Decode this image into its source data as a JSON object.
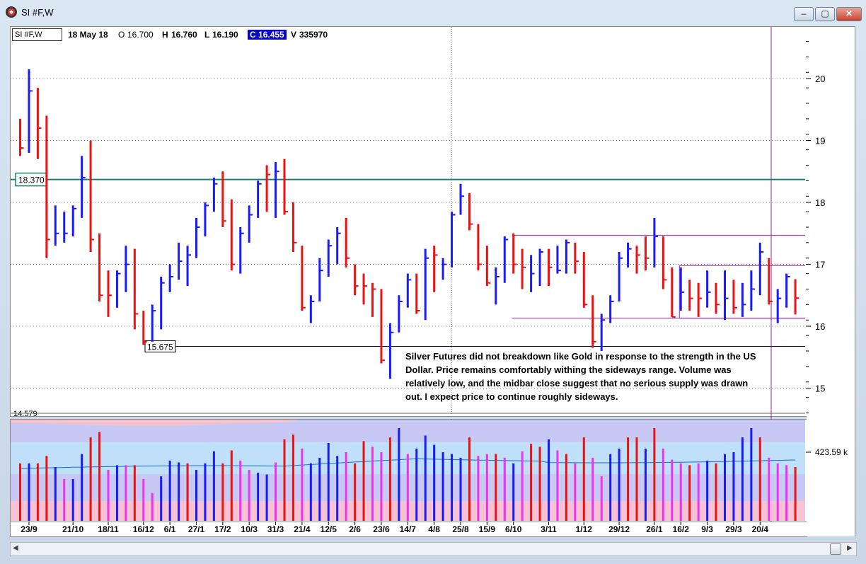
{
  "window": {
    "title": "SI #F,W"
  },
  "controls": {
    "minimize": "–",
    "maximize": "▢",
    "close": "✕"
  },
  "header": {
    "symbol": "SI #F,W",
    "date": "18 May 18",
    "open_label": "O",
    "open": "16.700",
    "high_label": "H",
    "high": "16.760",
    "low_label": "L",
    "low": "16.190",
    "close_label": "C",
    "close": "16.455",
    "volume_label": "V",
    "volume": "335970"
  },
  "annotation": "Silver Futures did not breakdown like Gold in response to the strength in the US Dollar.   Price remains comfortably withing the sideways range. Volume was relatively low, and the midbar close suggest that no serious supply was drawn out.   I expect price to continue roughly sideways.",
  "colors": {
    "up": "#1a1aff",
    "down": "#ee1111",
    "pink": "#ee33ee",
    "teal": "#1a8070",
    "purple": "#a020a0"
  },
  "chart_data": {
    "type": "bar",
    "title": "",
    "price_axis": {
      "ylim": [
        14.579,
        20.85
      ],
      "ticks": [
        15,
        16,
        17,
        18,
        19,
        20
      ],
      "bottom_label": "14.579"
    },
    "x_ticks": [
      {
        "i": 1,
        "label": "23/9"
      },
      {
        "i": 6,
        "label": "21/10"
      },
      {
        "i": 10,
        "label": "18/11"
      },
      {
        "i": 14,
        "label": "16/12"
      },
      {
        "i": 17,
        "label": "6/1"
      },
      {
        "i": 20,
        "label": "27/1"
      },
      {
        "i": 23,
        "label": "17/2"
      },
      {
        "i": 26,
        "label": "10/3"
      },
      {
        "i": 29,
        "label": "31/3"
      },
      {
        "i": 32,
        "label": "21/4"
      },
      {
        "i": 35,
        "label": "12/5"
      },
      {
        "i": 38,
        "label": "2/6"
      },
      {
        "i": 41,
        "label": "23/6"
      },
      {
        "i": 44,
        "label": "14/7"
      },
      {
        "i": 47,
        "label": "4/8"
      },
      {
        "i": 50,
        "label": "25/8"
      },
      {
        "i": 53,
        "label": "15/9"
      },
      {
        "i": 56,
        "label": "6/10"
      },
      {
        "i": 60,
        "label": "3/11"
      },
      {
        "i": 64,
        "label": "1/12"
      },
      {
        "i": 68,
        "label": "29/12"
      },
      {
        "i": 72,
        "label": "26/1"
      },
      {
        "i": 75,
        "label": "16/2"
      },
      {
        "i": 78,
        "label": "9/3"
      },
      {
        "i": 81,
        "label": "29/3"
      },
      {
        "i": 84,
        "label": "20/4"
      }
    ],
    "levels": [
      {
        "name": "resistance",
        "value": 18.37,
        "label": "18.370",
        "color": "#1a8070"
      },
      {
        "name": "support",
        "value": 15.675,
        "label": "15.675",
        "color": "#00008b"
      }
    ],
    "ranges": [
      {
        "from": 56,
        "to": 89,
        "high": 17.47,
        "low": 16.13,
        "color": "#a020a0"
      },
      {
        "from": 75,
        "to": 89,
        "high": 16.98,
        "low": 16.13,
        "color": "#a020a0"
      }
    ],
    "volume_label": "423.59 k",
    "bars": [
      {
        "h": 19.35,
        "l": 18.75,
        "c": 18.88,
        "d": "down"
      },
      {
        "h": 20.15,
        "l": 18.8,
        "c": 19.8,
        "d": "up"
      },
      {
        "h": 19.85,
        "l": 18.7,
        "c": 19.2,
        "d": "down"
      },
      {
        "h": 19.4,
        "l": 17.1,
        "c": 17.4,
        "d": "down"
      },
      {
        "h": 17.95,
        "l": 17.3,
        "c": 17.5,
        "d": "up"
      },
      {
        "h": 17.85,
        "l": 17.35,
        "c": 17.5,
        "d": "up"
      },
      {
        "h": 17.95,
        "l": 17.45,
        "c": 17.9,
        "d": "up"
      },
      {
        "h": 18.75,
        "l": 17.75,
        "c": 18.4,
        "d": "up"
      },
      {
        "h": 19.0,
        "l": 17.2,
        "c": 17.4,
        "d": "down"
      },
      {
        "h": 17.5,
        "l": 16.4,
        "c": 16.5,
        "d": "down"
      },
      {
        "h": 16.9,
        "l": 16.15,
        "c": 16.5,
        "d": "down"
      },
      {
        "h": 16.9,
        "l": 16.3,
        "c": 16.85,
        "d": "up"
      },
      {
        "h": 17.3,
        "l": 16.55,
        "c": 17.0,
        "d": "up"
      },
      {
        "h": 17.25,
        "l": 15.95,
        "c": 16.2,
        "d": "down"
      },
      {
        "h": 16.25,
        "l": 15.7,
        "c": 15.75,
        "d": "down"
      },
      {
        "h": 16.35,
        "l": 15.75,
        "c": 16.25,
        "d": "up"
      },
      {
        "h": 16.8,
        "l": 15.95,
        "c": 16.7,
        "d": "up"
      },
      {
        "h": 17.0,
        "l": 16.55,
        "c": 16.8,
        "d": "up"
      },
      {
        "h": 17.35,
        "l": 16.75,
        "c": 17.05,
        "d": "up"
      },
      {
        "h": 17.3,
        "l": 16.65,
        "c": 17.15,
        "d": "up"
      },
      {
        "h": 17.75,
        "l": 17.1,
        "c": 17.6,
        "d": "up"
      },
      {
        "h": 18.0,
        "l": 17.45,
        "c": 17.95,
        "d": "up"
      },
      {
        "h": 18.4,
        "l": 17.85,
        "c": 18.3,
        "d": "up"
      },
      {
        "h": 18.5,
        "l": 17.6,
        "c": 17.7,
        "d": "down"
      },
      {
        "h": 18.05,
        "l": 16.9,
        "c": 17.0,
        "d": "down"
      },
      {
        "h": 17.6,
        "l": 16.85,
        "c": 17.5,
        "d": "up"
      },
      {
        "h": 17.95,
        "l": 17.35,
        "c": 17.8,
        "d": "up"
      },
      {
        "h": 18.35,
        "l": 17.75,
        "c": 18.3,
        "d": "up"
      },
      {
        "h": 18.6,
        "l": 17.85,
        "c": 18.45,
        "d": "down"
      },
      {
        "h": 18.65,
        "l": 17.75,
        "c": 18.5,
        "d": "up"
      },
      {
        "h": 18.7,
        "l": 17.8,
        "c": 17.85,
        "d": "down"
      },
      {
        "h": 18.0,
        "l": 17.2,
        "c": 17.35,
        "d": "down"
      },
      {
        "h": 17.3,
        "l": 16.25,
        "c": 16.3,
        "d": "down"
      },
      {
        "h": 16.5,
        "l": 16.05,
        "c": 16.4,
        "d": "up"
      },
      {
        "h": 17.1,
        "l": 16.4,
        "c": 16.9,
        "d": "up"
      },
      {
        "h": 17.4,
        "l": 16.8,
        "c": 17.3,
        "d": "up"
      },
      {
        "h": 17.6,
        "l": 17.0,
        "c": 17.5,
        "d": "up"
      },
      {
        "h": 17.75,
        "l": 16.95,
        "c": 17.1,
        "d": "down"
      },
      {
        "h": 17.0,
        "l": 16.5,
        "c": 16.65,
        "d": "down"
      },
      {
        "h": 16.85,
        "l": 16.35,
        "c": 16.65,
        "d": "down"
      },
      {
        "h": 16.7,
        "l": 16.15,
        "c": 16.6,
        "d": "down"
      },
      {
        "h": 16.6,
        "l": 15.4,
        "c": 15.45,
        "d": "down"
      },
      {
        "h": 16.05,
        "l": 15.15,
        "c": 15.9,
        "d": "up"
      },
      {
        "h": 16.5,
        "l": 15.9,
        "c": 16.4,
        "d": "up"
      },
      {
        "h": 16.85,
        "l": 16.3,
        "c": 16.75,
        "d": "up"
      },
      {
        "h": 16.85,
        "l": 16.2,
        "c": 16.25,
        "d": "down"
      },
      {
        "h": 17.25,
        "l": 16.1,
        "c": 17.1,
        "d": "up"
      },
      {
        "h": 17.3,
        "l": 16.55,
        "c": 17.15,
        "d": "down"
      },
      {
        "h": 17.1,
        "l": 16.75,
        "c": 17.0,
        "d": "up"
      },
      {
        "h": 17.85,
        "l": 16.95,
        "c": 17.8,
        "d": "up"
      },
      {
        "h": 18.3,
        "l": 17.8,
        "c": 18.1,
        "d": "up"
      },
      {
        "h": 18.15,
        "l": 17.55,
        "c": 17.65,
        "d": "down"
      },
      {
        "h": 17.65,
        "l": 16.9,
        "c": 17.0,
        "d": "down"
      },
      {
        "h": 17.3,
        "l": 16.65,
        "c": 16.7,
        "d": "down"
      },
      {
        "h": 16.95,
        "l": 16.35,
        "c": 16.8,
        "d": "up"
      },
      {
        "h": 17.45,
        "l": 16.7,
        "c": 17.4,
        "d": "up"
      },
      {
        "h": 17.5,
        "l": 16.85,
        "c": 17.0,
        "d": "down"
      },
      {
        "h": 17.25,
        "l": 16.6,
        "c": 16.95,
        "d": "down"
      },
      {
        "h": 17.15,
        "l": 16.55,
        "c": 16.85,
        "d": "up"
      },
      {
        "h": 17.25,
        "l": 16.65,
        "c": 17.2,
        "d": "up"
      },
      {
        "h": 17.25,
        "l": 16.65,
        "c": 16.95,
        "d": "down"
      },
      {
        "h": 17.3,
        "l": 16.85,
        "c": 16.9,
        "d": "up"
      },
      {
        "h": 17.4,
        "l": 16.85,
        "c": 17.35,
        "d": "up"
      },
      {
        "h": 17.35,
        "l": 16.85,
        "c": 17.05,
        "d": "down"
      },
      {
        "h": 17.2,
        "l": 16.3,
        "c": 16.35,
        "d": "down"
      },
      {
        "h": 16.5,
        "l": 15.65,
        "c": 15.75,
        "d": "down"
      },
      {
        "h": 16.2,
        "l": 15.6,
        "c": 16.1,
        "d": "up"
      },
      {
        "h": 16.5,
        "l": 16.05,
        "c": 16.4,
        "d": "up"
      },
      {
        "h": 17.2,
        "l": 16.4,
        "c": 17.1,
        "d": "up"
      },
      {
        "h": 17.35,
        "l": 16.95,
        "c": 17.25,
        "d": "up"
      },
      {
        "h": 17.3,
        "l": 16.85,
        "c": 17.15,
        "d": "down"
      },
      {
        "h": 17.45,
        "l": 16.9,
        "c": 17.1,
        "d": "down"
      },
      {
        "h": 17.75,
        "l": 16.95,
        "c": 17.45,
        "d": "up"
      },
      {
        "h": 17.45,
        "l": 16.6,
        "c": 16.75,
        "d": "down"
      },
      {
        "h": 16.95,
        "l": 16.15,
        "c": 16.15,
        "d": "down"
      },
      {
        "h": 16.95,
        "l": 16.25,
        "c": 16.55,
        "d": "up"
      },
      {
        "h": 16.75,
        "l": 16.25,
        "c": 16.45,
        "d": "down"
      },
      {
        "h": 16.7,
        "l": 16.15,
        "c": 16.45,
        "d": "down"
      },
      {
        "h": 16.9,
        "l": 16.3,
        "c": 16.55,
        "d": "up"
      },
      {
        "h": 16.7,
        "l": 16.2,
        "c": 16.35,
        "d": "down"
      },
      {
        "h": 16.9,
        "l": 16.1,
        "c": 16.45,
        "d": "up"
      },
      {
        "h": 16.75,
        "l": 16.2,
        "c": 16.3,
        "d": "down"
      },
      {
        "h": 16.7,
        "l": 16.15,
        "c": 16.35,
        "d": "up"
      },
      {
        "h": 16.9,
        "l": 16.25,
        "c": 16.6,
        "d": "up"
      },
      {
        "h": 17.35,
        "l": 16.5,
        "c": 17.2,
        "d": "up"
      },
      {
        "h": 17.1,
        "l": 16.35,
        "c": 16.4,
        "d": "down"
      },
      {
        "h": 16.6,
        "l": 16.05,
        "c": 16.45,
        "d": "up"
      },
      {
        "h": 16.85,
        "l": 16.3,
        "c": 16.8,
        "d": "up"
      },
      {
        "h": 16.76,
        "l": 16.19,
        "c": 16.455,
        "d": "down"
      }
    ],
    "volume": [
      {
        "v": 0.62,
        "c": "red"
      },
      {
        "v": 0.62,
        "c": "blue"
      },
      {
        "v": 0.62,
        "c": "red"
      },
      {
        "v": 0.7,
        "c": "red"
      },
      {
        "v": 0.58,
        "c": "blue"
      },
      {
        "v": 0.45,
        "c": "pink"
      },
      {
        "v": 0.45,
        "c": "blue"
      },
      {
        "v": 0.72,
        "c": "blue"
      },
      {
        "v": 0.9,
        "c": "red"
      },
      {
        "v": 0.96,
        "c": "red"
      },
      {
        "v": 0.55,
        "c": "pink"
      },
      {
        "v": 0.6,
        "c": "blue"
      },
      {
        "v": 0.6,
        "c": "pink"
      },
      {
        "v": 0.6,
        "c": "red"
      },
      {
        "v": 0.45,
        "c": "pink"
      },
      {
        "v": 0.3,
        "c": "pink"
      },
      {
        "v": 0.48,
        "c": "blue"
      },
      {
        "v": 0.65,
        "c": "blue"
      },
      {
        "v": 0.63,
        "c": "blue"
      },
      {
        "v": 0.62,
        "c": "red"
      },
      {
        "v": 0.55,
        "c": "blue"
      },
      {
        "v": 0.62,
        "c": "blue"
      },
      {
        "v": 0.75,
        "c": "blue"
      },
      {
        "v": 0.62,
        "c": "red"
      },
      {
        "v": 0.76,
        "c": "red"
      },
      {
        "v": 0.65,
        "c": "pink"
      },
      {
        "v": 0.55,
        "c": "pink"
      },
      {
        "v": 0.52,
        "c": "blue"
      },
      {
        "v": 0.5,
        "c": "blue"
      },
      {
        "v": 0.63,
        "c": "pink"
      },
      {
        "v": 0.88,
        "c": "red"
      },
      {
        "v": 0.93,
        "c": "red"
      },
      {
        "v": 0.78,
        "c": "pink"
      },
      {
        "v": 0.62,
        "c": "blue"
      },
      {
        "v": 0.68,
        "c": "blue"
      },
      {
        "v": 0.84,
        "c": "blue"
      },
      {
        "v": 0.7,
        "c": "blue"
      },
      {
        "v": 0.74,
        "c": "pink"
      },
      {
        "v": 0.62,
        "c": "red"
      },
      {
        "v": 0.86,
        "c": "red"
      },
      {
        "v": 0.8,
        "c": "pink"
      },
      {
        "v": 0.74,
        "c": "pink"
      },
      {
        "v": 0.9,
        "c": "red"
      },
      {
        "v": 1.0,
        "c": "blue"
      },
      {
        "v": 0.72,
        "c": "pink"
      },
      {
        "v": 0.78,
        "c": "blue"
      },
      {
        "v": 0.92,
        "c": "blue"
      },
      {
        "v": 0.82,
        "c": "blue"
      },
      {
        "v": 0.74,
        "c": "blue"
      },
      {
        "v": 0.72,
        "c": "blue"
      },
      {
        "v": 0.68,
        "c": "blue"
      },
      {
        "v": 0.9,
        "c": "red"
      },
      {
        "v": 0.7,
        "c": "pink"
      },
      {
        "v": 0.72,
        "c": "pink"
      },
      {
        "v": 0.72,
        "c": "red"
      },
      {
        "v": 0.68,
        "c": "pink"
      },
      {
        "v": 0.62,
        "c": "blue"
      },
      {
        "v": 0.75,
        "c": "pink"
      },
      {
        "v": 0.83,
        "c": "red"
      },
      {
        "v": 0.8,
        "c": "red"
      },
      {
        "v": 0.88,
        "c": "blue"
      },
      {
        "v": 0.76,
        "c": "pink"
      },
      {
        "v": 0.72,
        "c": "red"
      },
      {
        "v": 0.62,
        "c": "pink"
      },
      {
        "v": 0.9,
        "c": "red"
      },
      {
        "v": 0.68,
        "c": "pink"
      },
      {
        "v": 0.48,
        "c": "pink"
      },
      {
        "v": 0.72,
        "c": "blue"
      },
      {
        "v": 0.78,
        "c": "blue"
      },
      {
        "v": 0.9,
        "c": "red"
      },
      {
        "v": 0.9,
        "c": "red"
      },
      {
        "v": 0.78,
        "c": "blue"
      },
      {
        "v": 1.0,
        "c": "red"
      },
      {
        "v": 0.78,
        "c": "pink"
      },
      {
        "v": 0.66,
        "c": "pink"
      },
      {
        "v": 0.62,
        "c": "pink"
      },
      {
        "v": 0.6,
        "c": "red"
      },
      {
        "v": 0.62,
        "c": "pink"
      },
      {
        "v": 0.65,
        "c": "blue"
      },
      {
        "v": 0.62,
        "c": "red"
      },
      {
        "v": 0.72,
        "c": "blue"
      },
      {
        "v": 0.74,
        "c": "blue"
      },
      {
        "v": 0.9,
        "c": "blue"
      },
      {
        "v": 1.0,
        "c": "blue"
      },
      {
        "v": 0.9,
        "c": "red"
      },
      {
        "v": 0.68,
        "c": "pink"
      },
      {
        "v": 0.62,
        "c": "pink"
      },
      {
        "v": 0.6,
        "c": "pink"
      },
      {
        "v": 0.58,
        "c": "red"
      }
    ]
  }
}
